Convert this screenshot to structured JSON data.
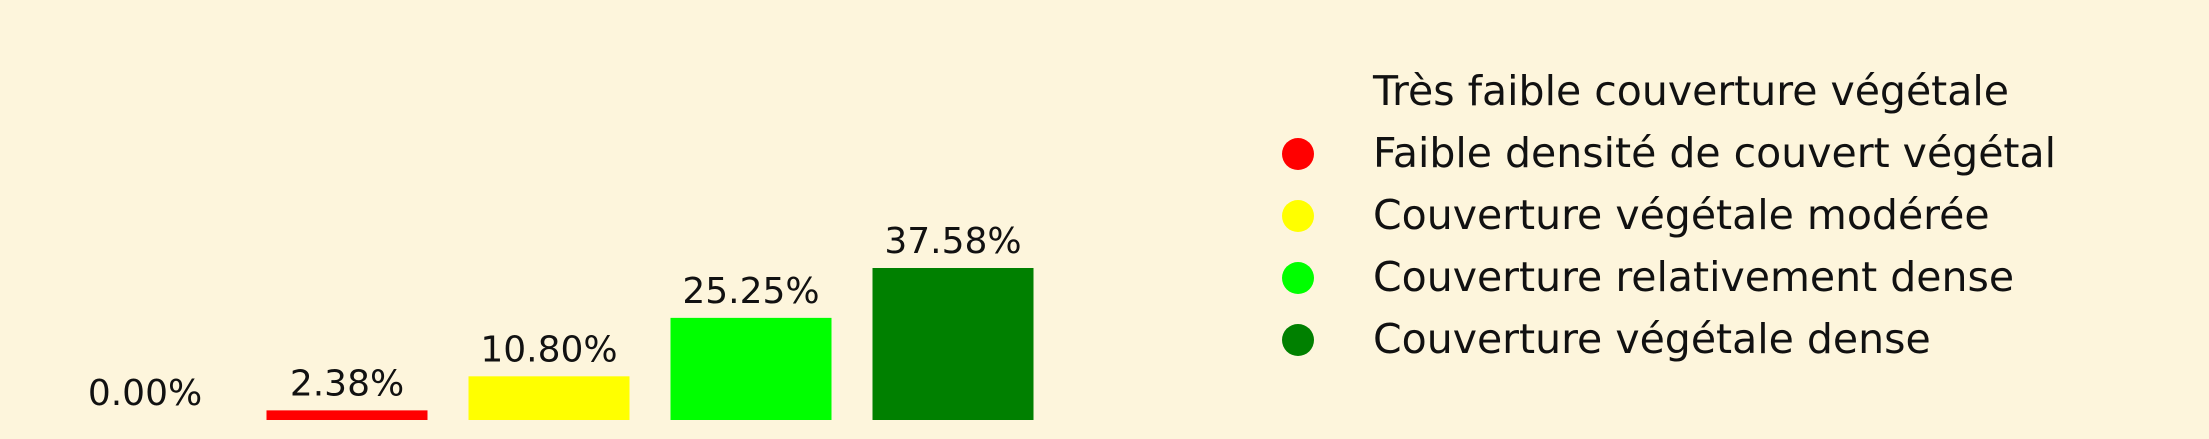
{
  "colors": {
    "background": "#FDF5DC",
    "text": "#111111"
  },
  "chart_data": {
    "type": "bar",
    "title": "",
    "xlabel": "",
    "ylabel": "",
    "ylim": [
      0,
      40
    ],
    "grid": false,
    "legend_position": "right",
    "categories": [
      "Très faible couverture végétale",
      "Faible densité de couvert végétal",
      "Couverture végétale modérée",
      "Couverture relativement dense",
      "Couverture végétale dense"
    ],
    "values": [
      0.0,
      2.38,
      10.8,
      25.25,
      37.58
    ],
    "value_labels": [
      "0.00%",
      "2.38%",
      "10.80%",
      "25.25%",
      "37.58%"
    ],
    "colors": [
      "#FFFFFF",
      "#FF0000",
      "#FFFF00",
      "#00FF00",
      "#008000"
    ],
    "legend": [
      {
        "label": "Très faible couverture végétale",
        "color": "#FFFFFF",
        "marker": "none"
      },
      {
        "label": "Faible densité de couvert végétal",
        "color": "#FF0000",
        "marker": "circle"
      },
      {
        "label": "Couverture végétale modérée",
        "color": "#FFFF00",
        "marker": "circle"
      },
      {
        "label": "Couverture relativement dense",
        "color": "#00FF00",
        "marker": "circle"
      },
      {
        "label": "Couverture végétale dense",
        "color": "#008000",
        "marker": "circle"
      }
    ]
  }
}
